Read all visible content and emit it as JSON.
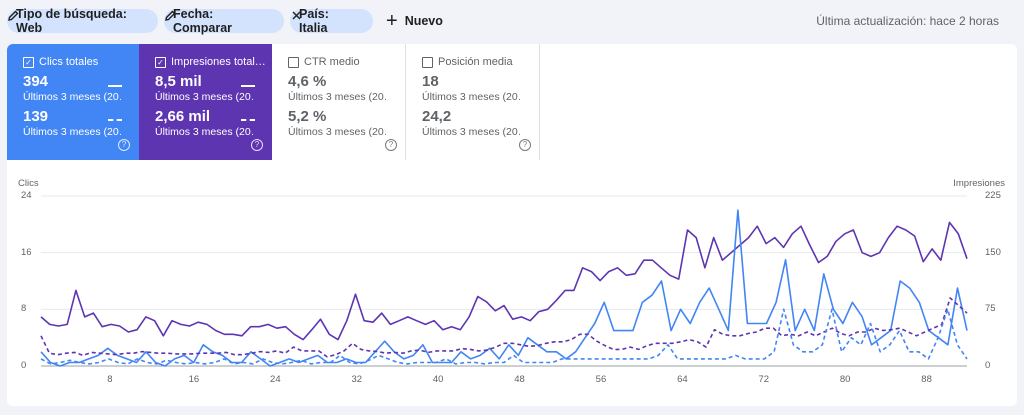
{
  "filters": {
    "chips": [
      {
        "label": "Tipo de búsqueda: Web",
        "icon": "pencil-icon"
      },
      {
        "label": "Fecha: Comparar",
        "icon": "pencil-icon"
      },
      {
        "label": "País: Italia",
        "icon": "close-icon"
      }
    ],
    "new_label": "Nuevo",
    "updated": "Última actualización: hace 2 horas"
  },
  "metrics": [
    {
      "label": "Clics totales",
      "checked": true,
      "value1": "394",
      "period1": "Últimos 3 meses (20…",
      "value2": "139",
      "period2": "Últimos 3 meses (20…",
      "color": "#4285f4"
    },
    {
      "label": "Impresiones total…",
      "checked": true,
      "value1": "8,5 mil",
      "period1": "Últimos 3 meses (20…",
      "value2": "2,66 mil",
      "period2": "Últimos 3 meses (20…",
      "color": "#5e35b1"
    },
    {
      "label": "CTR medio",
      "checked": false,
      "value1": "4,6 %",
      "period1": "Últimos 3 meses (20…",
      "value2": "5,2 %",
      "period2": "Últimos 3 meses (20…",
      "color": "#5f6368"
    },
    {
      "label": "Posición media",
      "checked": false,
      "value1": "18",
      "period1": "Últimos 3 meses (20…",
      "value2": "24,2",
      "period2": "Últimos 3 meses (20…",
      "color": "#5f6368"
    }
  ],
  "chart_data": {
    "type": "line",
    "ylabel_left": "Clics",
    "ylabel_right": "Impresiones",
    "y_left_ticks": [
      "24",
      "16",
      "8",
      "0"
    ],
    "y_right_ticks": [
      "225",
      "150",
      "75",
      "0"
    ],
    "ylim_left": [
      0,
      24
    ],
    "ylim_right": [
      0,
      225
    ],
    "xlim": [
      1,
      92
    ],
    "x_ticks": [
      "8",
      "16",
      "24",
      "32",
      "40",
      "48",
      "56",
      "64",
      "72",
      "80",
      "88"
    ],
    "grid": true,
    "series": [
      {
        "axis": "right",
        "color": "#5e35b1",
        "dash": false,
        "values": [
          65,
          55,
          53,
          55,
          100,
          65,
          70,
          52,
          55,
          53,
          45,
          48,
          65,
          60,
          40,
          60,
          55,
          53,
          58,
          55,
          47,
          42,
          42,
          40,
          52,
          52,
          55,
          50,
          52,
          42,
          35,
          48,
          62,
          42,
          35,
          60,
          95,
          60,
          58,
          70,
          55,
          60,
          65,
          60,
          55,
          60,
          48,
          52,
          48,
          65,
          92,
          85,
          73,
          80,
          62,
          65,
          60,
          72,
          75,
          87,
          100,
          100,
          130,
          125,
          113,
          125,
          130,
          120,
          122,
          140,
          140,
          130,
          120,
          115,
          180,
          170,
          130,
          170,
          140,
          150,
          160,
          170,
          185,
          162,
          170,
          157,
          175,
          185,
          160,
          137,
          145,
          165,
          175,
          180,
          150,
          145,
          150,
          170,
          185,
          180,
          172,
          138,
          155,
          140,
          190,
          175,
          142
        ]
      },
      {
        "axis": "left",
        "color": "#4285f4",
        "dash": false,
        "values": [
          2,
          0.5,
          0,
          0.5,
          0.5,
          1,
          1.5,
          2.5,
          1.5,
          1,
          0.5,
          2,
          0.5,
          0,
          1,
          1.5,
          0.5,
          3,
          2,
          1.5,
          0.5,
          0.5,
          2,
          1,
          0,
          0.5,
          1,
          0.5,
          1,
          1.5,
          0.5,
          0.5,
          1,
          0.5,
          0.5,
          2,
          3.5,
          2,
          1,
          1.5,
          3,
          0.5,
          0.5,
          0.5,
          2,
          1,
          1.5,
          2.5,
          1,
          3,
          1.5,
          4,
          3,
          2,
          2,
          1,
          2,
          4,
          6,
          9,
          5,
          5,
          5,
          9,
          10,
          12,
          5,
          8,
          6,
          9,
          11,
          8,
          5,
          22,
          6,
          6,
          6,
          9,
          15,
          5,
          8,
          5,
          13,
          8,
          6,
          9,
          7,
          3,
          4,
          5,
          12,
          11,
          9,
          5,
          4,
          3,
          11,
          5
        ]
      },
      {
        "axis": "right",
        "color": "#5e35b1",
        "dash": true,
        "values": [
          40,
          17,
          15,
          17,
          18,
          14,
          18,
          17,
          16,
          15,
          17,
          17,
          19,
          18,
          17,
          17,
          16,
          16,
          16,
          17,
          17,
          17,
          18,
          15,
          15,
          17,
          19,
          18,
          20,
          17,
          25,
          20,
          20,
          20,
          12,
          15,
          20,
          30,
          22,
          20,
          19,
          17,
          18,
          17,
          20,
          21,
          18,
          20,
          20,
          20,
          23,
          22,
          20,
          21,
          25,
          30,
          30,
          28,
          26,
          27,
          30,
          32,
          32,
          35,
          42,
          42,
          33,
          27,
          22,
          22,
          25,
          22,
          27,
          30,
          30,
          30,
          32,
          35,
          32,
          25,
          48,
          42,
          40,
          40,
          43,
          45,
          50,
          50,
          40,
          42,
          40,
          45,
          40,
          45,
          50,
          43,
          40,
          45,
          45,
          50,
          47,
          48,
          50,
          45,
          40,
          45,
          50,
          55,
          90,
          80,
          70
        ]
      },
      {
        "axis": "left",
        "color": "#4285f4",
        "dash": true,
        "values": [
          1,
          0.3,
          0.5,
          0.8,
          0.5,
          0.3,
          0.5,
          1,
          0.5,
          0.3,
          1,
          0.5,
          0.3,
          0.8,
          0.5,
          0.3,
          0.5,
          0.3,
          0.5,
          1,
          0.3,
          0.5,
          0.3,
          1,
          0.5,
          0.3,
          0.5,
          0.8,
          0.3,
          0.5,
          0.5,
          1.5,
          0.5,
          0.3,
          0.8,
          1.5,
          1,
          0.5,
          0.3,
          0.5,
          0.5,
          0.5,
          1,
          0.3,
          0.5,
          0.5,
          0.3,
          0.5,
          0.5,
          1.5,
          0.5,
          0.5,
          0.5,
          0.5,
          1,
          1,
          1,
          1,
          1,
          1,
          1,
          1,
          1,
          1,
          1.5,
          3,
          1,
          1,
          1,
          1,
          1,
          1,
          1.5,
          1,
          1,
          1,
          2,
          8,
          3,
          2,
          2,
          3,
          8,
          2,
          4,
          3,
          6,
          2,
          3,
          5,
          2,
          2,
          1,
          4,
          8,
          3,
          1
        ]
      }
    ]
  }
}
